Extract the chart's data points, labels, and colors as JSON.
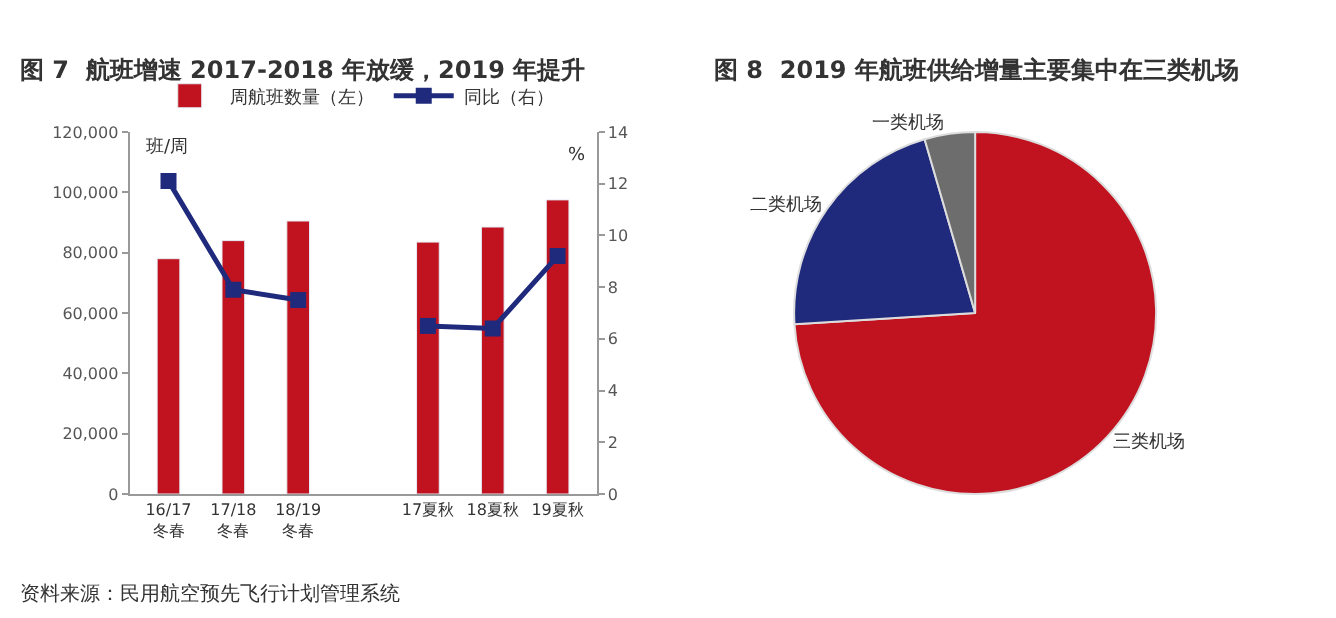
{
  "chart_data": [
    {
      "type": "bar",
      "title": "图 7  航班增速 2017-2018 年放缓，2019 年提升",
      "ylabel": "班/周",
      "y2label": "%",
      "categories": [
        "16/17冬春",
        "17/18冬春",
        "18/19冬春",
        null,
        "17夏秋",
        "18夏秋",
        "19夏秋"
      ],
      "series": [
        {
          "name": "周航班数量（左）",
          "color": "#c0131f",
          "values": [
            78000,
            84000,
            90500,
            null,
            83500,
            88500,
            97500
          ]
        },
        {
          "name": "同比（右）",
          "type": "line",
          "axis": "y2",
          "color": "#1f2a7c",
          "marker": "square",
          "values": [
            12.1,
            7.9,
            7.5,
            null,
            6.5,
            6.4,
            9.2
          ]
        }
      ],
      "ylim": [
        0,
        120000
      ],
      "yticks": [
        {
          "value": 0,
          "label": "0"
        },
        {
          "value": 20000,
          "label": "20,000"
        },
        {
          "value": 40000,
          "label": "40,000"
        },
        {
          "value": 60000,
          "label": "60,000"
        },
        {
          "value": 80000,
          "label": "80,000"
        },
        {
          "value": 100000,
          "label": "100,000"
        },
        {
          "value": 120000,
          "label": "120,000"
        }
      ],
      "y2lim": [
        0,
        14
      ],
      "y2ticks": [
        0,
        2,
        4,
        6,
        8,
        10,
        12,
        14
      ],
      "legend": "top",
      "annotations": [
        "资料来源：民用航空预先飞行计划管理系统"
      ]
    },
    {
      "type": "pie",
      "title": "图 8  2019 年航班供给增量主要集中在三类机场",
      "categories": [
        "三类机场",
        "二类机场",
        "一类机场"
      ],
      "values": [
        74,
        21.5,
        4.5
      ],
      "colors": [
        "#c0131f",
        "#1f2a7c",
        "#6d6d6d"
      ]
    }
  ]
}
